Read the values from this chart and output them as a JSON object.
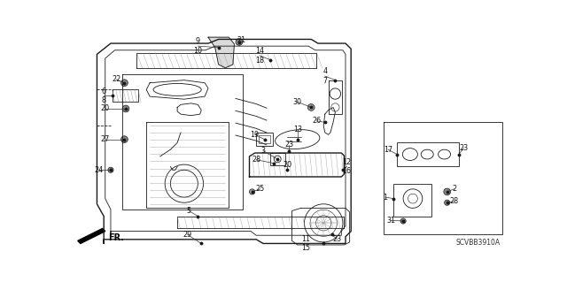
{
  "bg_color": "#ffffff",
  "diagram_code": "SCVBB3910A",
  "line_color": "#1a1a1a",
  "gray_color": "#888888",
  "light_gray": "#cccccc",
  "font_size": 5.8,
  "lw_main": 1.0,
  "lw_thin": 0.6
}
